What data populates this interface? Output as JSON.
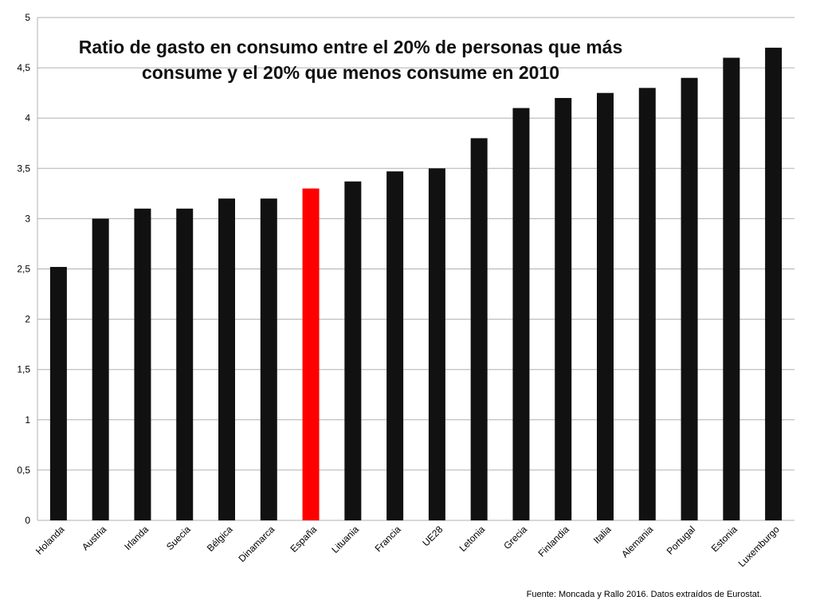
{
  "chart_data": {
    "type": "bar",
    "title_lines": [
      "Ratio de gasto en consumo entre el 20% de personas que más",
      "consume y el 20% que menos consume en 2010"
    ],
    "categories": [
      "Holanda",
      "Austria",
      "Irlanda",
      "Suecia",
      "Bélgica",
      "Dinamarca",
      "España",
      "Lituania",
      "Francia",
      "UE28",
      "Letonia",
      "Grecia",
      "Finlandia",
      "Italia",
      "Alemania",
      "Portugal",
      "Estonia",
      "Luxemburgo"
    ],
    "values": [
      2.52,
      3.0,
      3.1,
      3.1,
      3.2,
      3.2,
      3.3,
      3.37,
      3.47,
      3.5,
      3.8,
      4.1,
      4.2,
      4.25,
      4.3,
      4.4,
      4.6,
      4.7
    ],
    "highlight_category": "España",
    "ylim": [
      0,
      5
    ],
    "yticks": [
      0,
      0.5,
      1,
      1.5,
      2,
      2.5,
      3,
      3.5,
      4,
      4.5,
      5
    ],
    "ytick_labels": [
      "0",
      "0,5",
      "1",
      "1,5",
      "2",
      "2,5",
      "3",
      "3,5",
      "4",
      "4,5",
      "5"
    ],
    "grid": true,
    "xlabel": "",
    "ylabel": ""
  },
  "colors": {
    "bar": "#111111",
    "highlight": "#ff0000",
    "grid": "#b0b0b0",
    "text": "#000000"
  },
  "source_note": "Fuente: Moncada y Rallo 2016. Datos extraídos de Eurostat."
}
